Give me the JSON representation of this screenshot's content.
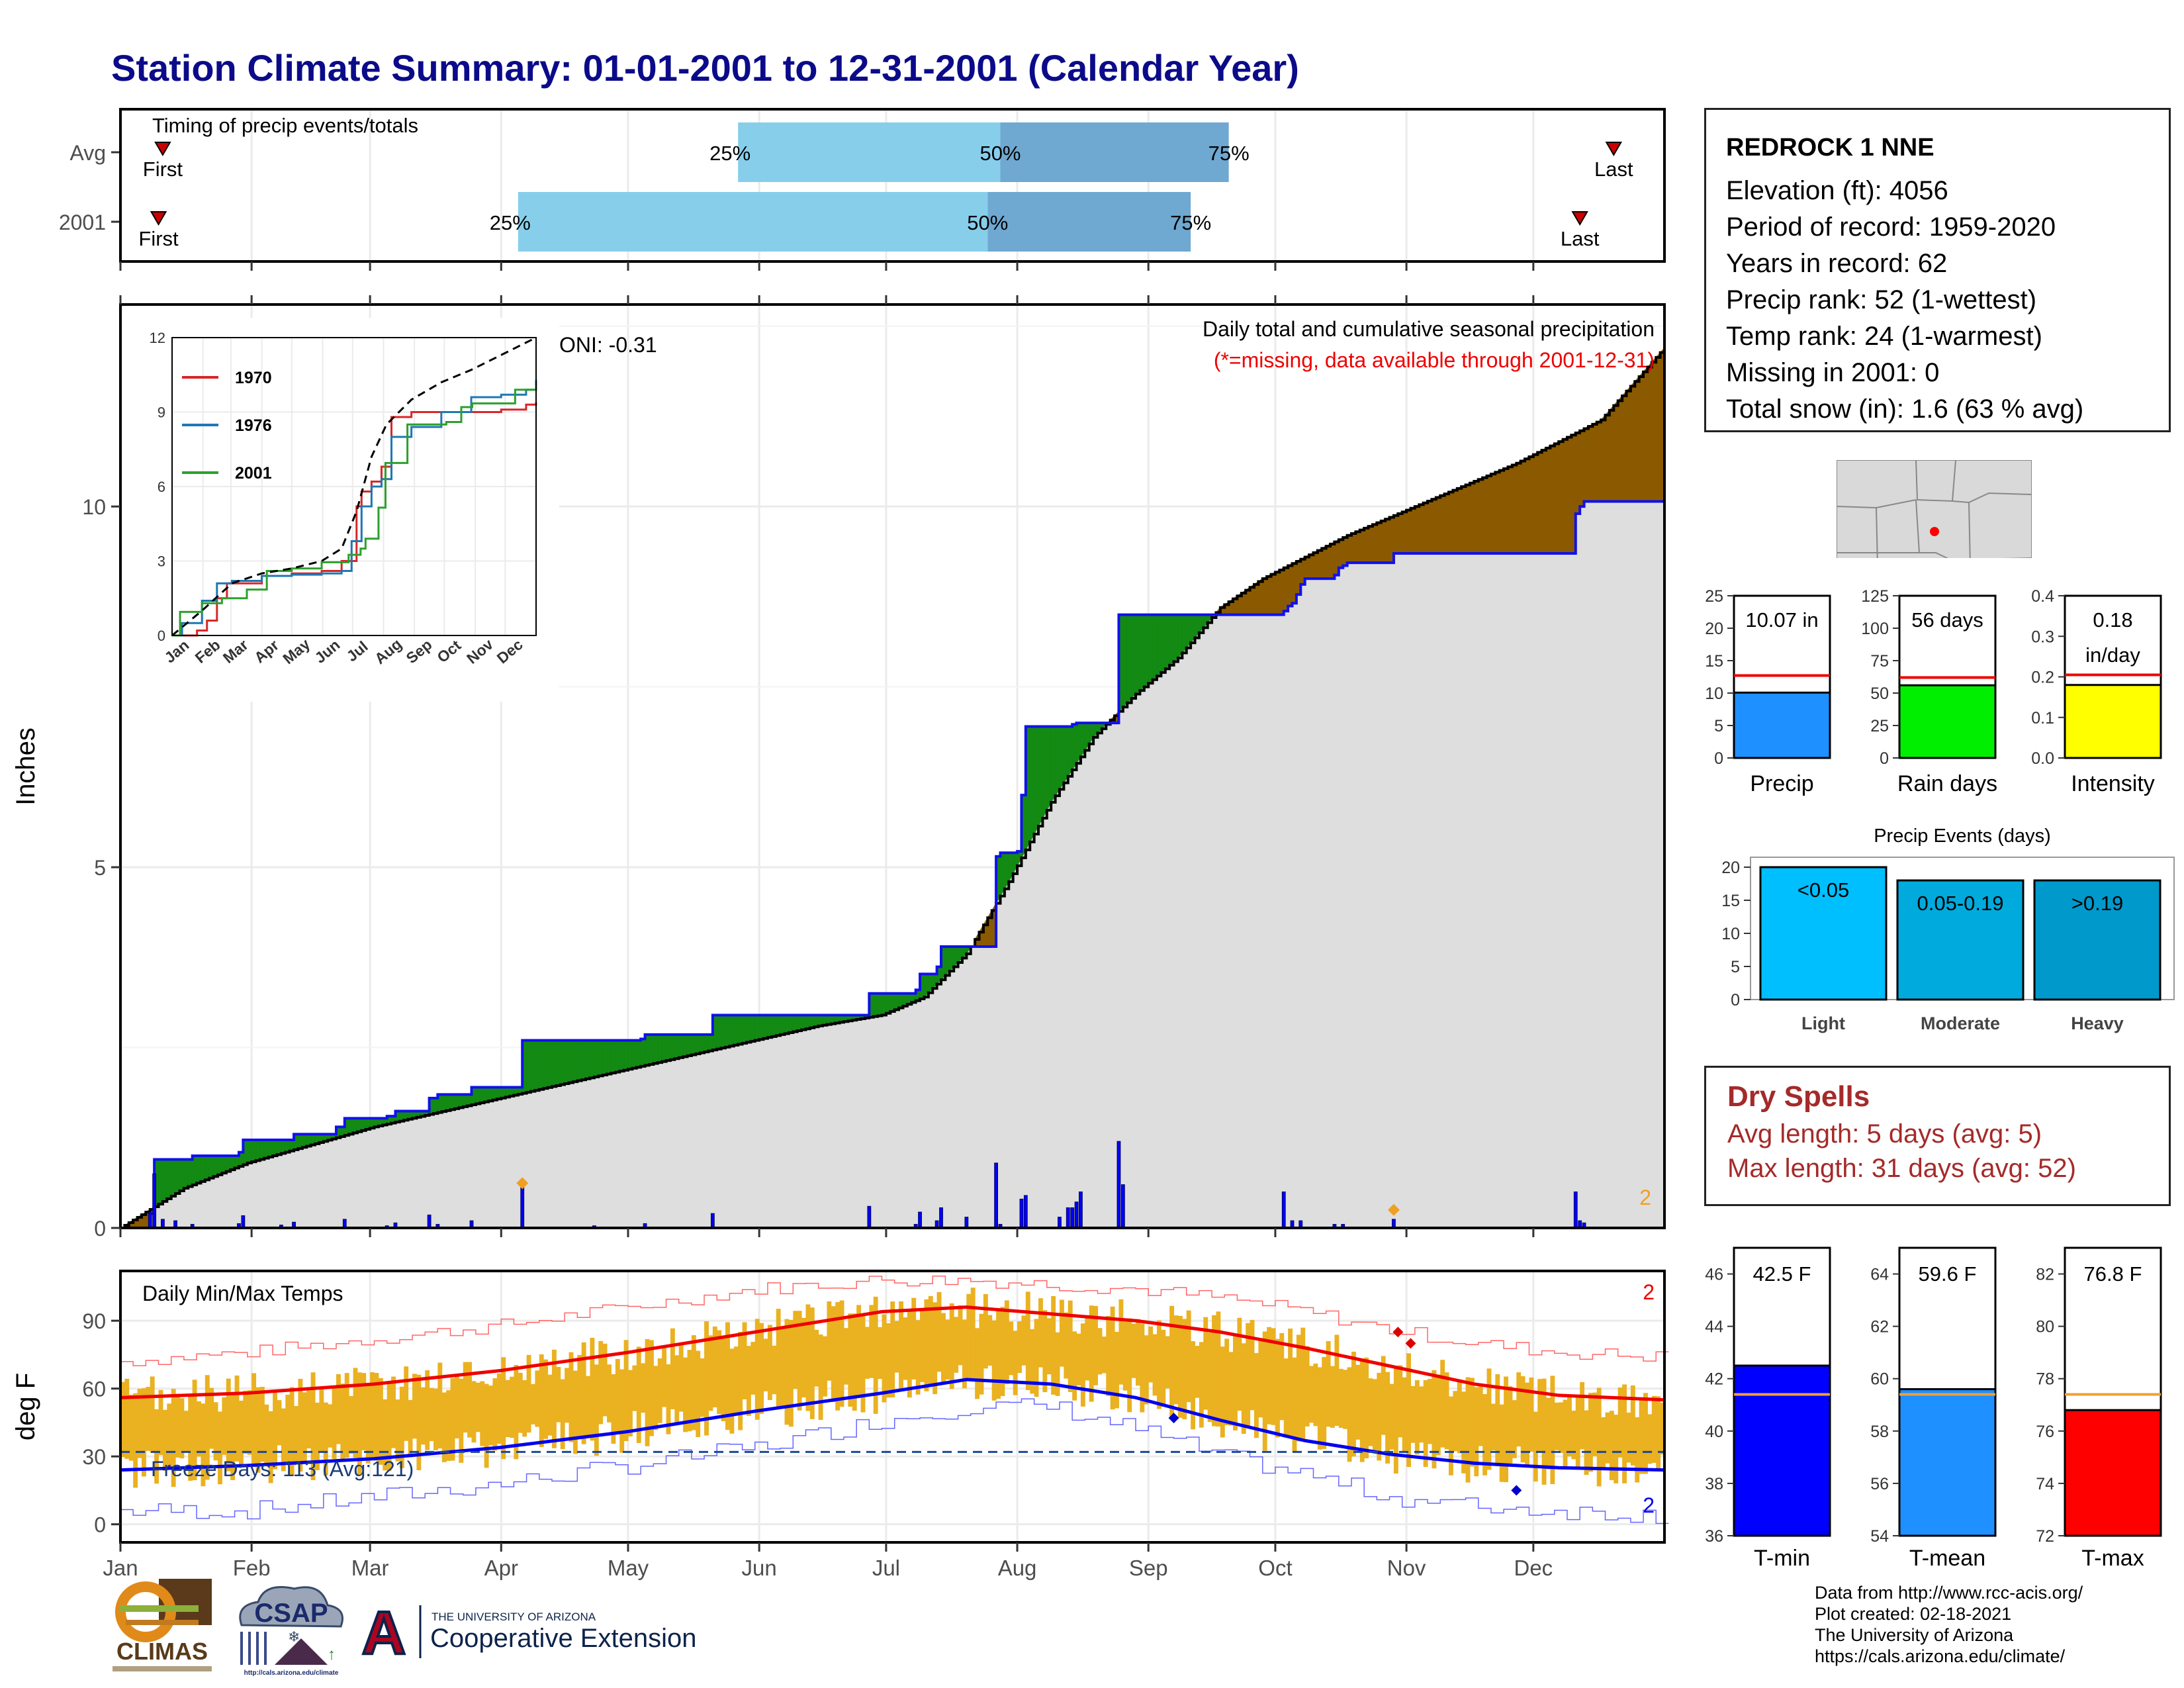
{
  "title": "Station Climate Summary: 01-01-2001 to 12-31-2001 (Calendar Year)",
  "timing": {
    "title": "Timing of precip events/totals",
    "rows": [
      {
        "label": "Avg",
        "first_doy": 10,
        "p25_doy": 146,
        "p50_doy": 208,
        "p75_doy": 262,
        "last_doy": 353
      },
      {
        "label": "2001",
        "first_doy": 9,
        "p25_doy": 94,
        "p50_doy": 205,
        "p75_doy": 253,
        "last_doy": 345
      }
    ],
    "first_label": "First",
    "last_label": "Last",
    "p25_label": "25%",
    "p50_label": "50%",
    "p75_label": "75%"
  },
  "months": [
    "Jan",
    "Feb",
    "Mar",
    "Apr",
    "May",
    "Jun",
    "Jul",
    "Aug",
    "Sep",
    "Oct",
    "Nov",
    "Dec"
  ],
  "precip_main": {
    "ylabel": "Inches",
    "yticks": [
      0,
      5,
      10
    ],
    "header1": "Daily total and cumulative seasonal precipitation",
    "header2": "(*=missing, data available through 2001-12-31)",
    "oni": "ONI: -0.31",
    "count_label": "2",
    "avg_cum": [
      [
        0,
        0
      ],
      [
        15,
        0.55
      ],
      [
        30,
        0.9
      ],
      [
        45,
        1.15
      ],
      [
        60,
        1.4
      ],
      [
        75,
        1.6
      ],
      [
        90,
        1.8
      ],
      [
        105,
        2.0
      ],
      [
        120,
        2.2
      ],
      [
        135,
        2.4
      ],
      [
        150,
        2.6
      ],
      [
        165,
        2.8
      ],
      [
        180,
        2.95
      ],
      [
        190,
        3.2
      ],
      [
        200,
        3.8
      ],
      [
        210,
        4.8
      ],
      [
        220,
        5.9
      ],
      [
        230,
        6.8
      ],
      [
        240,
        7.4
      ],
      [
        250,
        7.9
      ],
      [
        260,
        8.6
      ],
      [
        270,
        9.0
      ],
      [
        280,
        9.3
      ],
      [
        290,
        9.6
      ],
      [
        300,
        9.85
      ],
      [
        310,
        10.1
      ],
      [
        320,
        10.35
      ],
      [
        330,
        10.6
      ],
      [
        340,
        10.9
      ],
      [
        350,
        11.2
      ],
      [
        365,
        12.2
      ]
    ],
    "obs_cum": [
      [
        0,
        0
      ],
      [
        7,
        0.2
      ],
      [
        8,
        0.95
      ],
      [
        17,
        1.0
      ],
      [
        28,
        1.05
      ],
      [
        29,
        1.22
      ],
      [
        40,
        1.22
      ],
      [
        41,
        1.3
      ],
      [
        50,
        1.3
      ],
      [
        51,
        1.4
      ],
      [
        53,
        1.52
      ],
      [
        63,
        1.55
      ],
      [
        65,
        1.62
      ],
      [
        66,
        1.62
      ],
      [
        73,
        1.8
      ],
      [
        75,
        1.85
      ],
      [
        82,
        1.85
      ],
      [
        83,
        1.95
      ],
      [
        94,
        1.95
      ],
      [
        95,
        2.6
      ],
      [
        123,
        2.62
      ],
      [
        124,
        2.68
      ],
      [
        139,
        2.68
      ],
      [
        140,
        2.95
      ],
      [
        176,
        2.95
      ],
      [
        177,
        3.25
      ],
      [
        188,
        3.3
      ],
      [
        189,
        3.52
      ],
      [
        193,
        3.62
      ],
      [
        194,
        3.9
      ],
      [
        206,
        3.9
      ],
      [
        207,
        5.15
      ],
      [
        208,
        5.2
      ],
      [
        212,
        5.22
      ],
      [
        213,
        6.0
      ],
      [
        214,
        6.95
      ],
      [
        225,
        6.98
      ],
      [
        226,
        7.0
      ],
      [
        235,
        7.0
      ],
      [
        236,
        8.5
      ],
      [
        274,
        8.5
      ],
      [
        275,
        8.55
      ],
      [
        276,
        8.62
      ],
      [
        277,
        8.66
      ],
      [
        278,
        8.78
      ],
      [
        279,
        8.92
      ],
      [
        280,
        9.0
      ],
      [
        286,
        9.0
      ],
      [
        287,
        9.05
      ],
      [
        288,
        9.15
      ],
      [
        289,
        9.18
      ],
      [
        290,
        9.22
      ],
      [
        300,
        9.22
      ],
      [
        301,
        9.35
      ],
      [
        343,
        9.35
      ],
      [
        344,
        9.9
      ],
      [
        345,
        10.0
      ],
      [
        346,
        10.07
      ],
      [
        365,
        10.07
      ]
    ],
    "daily_bars": [
      [
        7,
        0.2
      ],
      [
        8,
        0.75
      ],
      [
        10,
        0.12
      ],
      [
        13,
        0.1
      ],
      [
        17,
        0.05
      ],
      [
        28,
        0.06
      ],
      [
        29,
        0.17
      ],
      [
        38,
        0.04
      ],
      [
        41,
        0.08
      ],
      [
        53,
        0.12
      ],
      [
        63,
        0.03
      ],
      [
        65,
        0.07
      ],
      [
        73,
        0.18
      ],
      [
        75,
        0.05
      ],
      [
        83,
        0.1
      ],
      [
        95,
        0.6
      ],
      [
        112,
        0.03
      ],
      [
        124,
        0.06
      ],
      [
        140,
        0.2
      ],
      [
        177,
        0.3
      ],
      [
        188,
        0.05
      ],
      [
        189,
        0.22
      ],
      [
        193,
        0.1
      ],
      [
        194,
        0.28
      ],
      [
        200,
        0.15
      ],
      [
        207,
        0.9
      ],
      [
        208,
        0.05
      ],
      [
        213,
        0.4
      ],
      [
        214,
        0.45
      ],
      [
        222,
        0.15
      ],
      [
        224,
        0.28
      ],
      [
        225,
        0.28
      ],
      [
        226,
        0.36
      ],
      [
        227,
        0.5
      ],
      [
        236,
        1.2
      ],
      [
        237,
        0.6
      ],
      [
        275,
        0.5
      ],
      [
        277,
        0.1
      ],
      [
        279,
        0.1
      ],
      [
        287,
        0.05
      ],
      [
        289,
        0.05
      ],
      [
        301,
        0.12
      ],
      [
        344,
        0.5
      ],
      [
        345,
        0.1
      ],
      [
        346,
        0.07
      ]
    ],
    "markers": [
      {
        "doy": 95,
        "y": 0.62,
        "color": "#f0a020"
      },
      {
        "doy": 301,
        "y": 0.25,
        "color": "#f0a020"
      }
    ]
  },
  "inset": {
    "yticks": [
      0,
      3,
      6,
      9,
      12
    ],
    "legend": [
      "1970",
      "1976",
      "2001"
    ],
    "series_colors": [
      "#d62728",
      "#1f77b4",
      "#2ca02c"
    ],
    "avg_color": "#000000",
    "avg": [
      [
        0,
        0
      ],
      [
        30,
        1
      ],
      [
        60,
        2.1
      ],
      [
        90,
        2.5
      ],
      [
        120,
        2.7
      ],
      [
        150,
        3
      ],
      [
        170,
        3.5
      ],
      [
        185,
        5
      ],
      [
        200,
        7.2
      ],
      [
        215,
        8.5
      ],
      [
        240,
        9.5
      ],
      [
        270,
        10.2
      ],
      [
        300,
        10.7
      ],
      [
        330,
        11.3
      ],
      [
        365,
        12
      ]
    ],
    "s1970": [
      [
        0,
        0
      ],
      [
        25,
        0.2
      ],
      [
        35,
        0.6
      ],
      [
        45,
        1.5
      ],
      [
        55,
        2.1
      ],
      [
        90,
        2.4
      ],
      [
        120,
        2.5
      ],
      [
        150,
        2.6
      ],
      [
        170,
        3.0
      ],
      [
        185,
        5.2
      ],
      [
        190,
        5.8
      ],
      [
        200,
        6.2
      ],
      [
        210,
        6.8
      ],
      [
        220,
        8.8
      ],
      [
        240,
        9.0
      ],
      [
        270,
        9.0
      ],
      [
        300,
        9.0
      ],
      [
        330,
        9.1
      ],
      [
        355,
        9.3
      ],
      [
        365,
        9.4
      ]
    ],
    "s1976": [
      [
        0,
        0
      ],
      [
        10,
        0.5
      ],
      [
        30,
        1.4
      ],
      [
        45,
        2.1
      ],
      [
        60,
        2.2
      ],
      [
        90,
        2.4
      ],
      [
        120,
        2.45
      ],
      [
        150,
        2.5
      ],
      [
        170,
        2.6
      ],
      [
        180,
        3.8
      ],
      [
        190,
        5.2
      ],
      [
        200,
        6.0
      ],
      [
        210,
        6.3
      ],
      [
        220,
        8.0
      ],
      [
        240,
        8.4
      ],
      [
        270,
        9.0
      ],
      [
        300,
        9.6
      ],
      [
        330,
        9.7
      ],
      [
        355,
        9.9
      ],
      [
        365,
        10.3
      ]
    ],
    "s2001": [
      [
        0,
        0
      ],
      [
        8,
        0.95
      ],
      [
        30,
        1.3
      ],
      [
        50,
        1.5
      ],
      [
        75,
        1.85
      ],
      [
        95,
        2.6
      ],
      [
        120,
        2.7
      ],
      [
        150,
        2.95
      ],
      [
        177,
        3.25
      ],
      [
        189,
        3.5
      ],
      [
        194,
        3.9
      ],
      [
        207,
        5.15
      ],
      [
        214,
        6.95
      ],
      [
        236,
        8.5
      ],
      [
        275,
        8.6
      ],
      [
        290,
        9.2
      ],
      [
        301,
        9.35
      ],
      [
        344,
        9.9
      ],
      [
        365,
        10.07
      ]
    ]
  },
  "temps": {
    "ylabel": "deg F",
    "yticks": [
      0,
      30,
      60,
      90
    ],
    "label": "Daily Min/Max Temps",
    "freeze_label": "Freeze Days: 113 (Avg:121)",
    "freeze_line": 32,
    "count_top": "2",
    "count_bottom": "2",
    "avg_max": [
      [
        0,
        56
      ],
      [
        30,
        58
      ],
      [
        60,
        62
      ],
      [
        90,
        68
      ],
      [
        120,
        76
      ],
      [
        150,
        85
      ],
      [
        180,
        94
      ],
      [
        200,
        96
      ],
      [
        220,
        93
      ],
      [
        240,
        90
      ],
      [
        260,
        85
      ],
      [
        280,
        78
      ],
      [
        300,
        70
      ],
      [
        320,
        62
      ],
      [
        340,
        57
      ],
      [
        365,
        55
      ]
    ],
    "avg_min": [
      [
        0,
        24
      ],
      [
        30,
        26
      ],
      [
        60,
        29
      ],
      [
        90,
        34
      ],
      [
        120,
        41
      ],
      [
        150,
        50
      ],
      [
        180,
        58
      ],
      [
        200,
        64
      ],
      [
        220,
        62
      ],
      [
        240,
        56
      ],
      [
        260,
        46
      ],
      [
        280,
        37
      ],
      [
        300,
        31
      ],
      [
        320,
        27
      ],
      [
        340,
        25
      ],
      [
        365,
        24
      ]
    ],
    "rec_max": [
      [
        0,
        72
      ],
      [
        30,
        76
      ],
      [
        60,
        82
      ],
      [
        90,
        88
      ],
      [
        120,
        96
      ],
      [
        150,
        104
      ],
      [
        180,
        108
      ],
      [
        200,
        108
      ],
      [
        220,
        106
      ],
      [
        240,
        104
      ],
      [
        260,
        100
      ],
      [
        280,
        94
      ],
      [
        300,
        86
      ],
      [
        320,
        80
      ],
      [
        340,
        76
      ],
      [
        365,
        74
      ]
    ],
    "rec_min": [
      [
        0,
        6
      ],
      [
        30,
        6
      ],
      [
        60,
        12
      ],
      [
        90,
        18
      ],
      [
        120,
        26
      ],
      [
        150,
        34
      ],
      [
        180,
        46
      ],
      [
        200,
        52
      ],
      [
        220,
        52
      ],
      [
        240,
        42
      ],
      [
        260,
        30
      ],
      [
        280,
        22
      ],
      [
        300,
        12
      ],
      [
        320,
        8
      ],
      [
        340,
        6
      ],
      [
        365,
        4
      ]
    ],
    "markers": [
      {
        "doy": 249,
        "y": 47,
        "color": "#0000cc"
      },
      {
        "doy": 302,
        "y": 85,
        "color": "#dd0000"
      },
      {
        "doy": 305,
        "y": 80,
        "color": "#dd0000"
      },
      {
        "doy": 330,
        "y": 15,
        "color": "#0000cc"
      }
    ]
  },
  "station": {
    "name": "REDROCK 1 NNE",
    "lines": [
      "Elevation (ft): 4056",
      "Period of record: 1959-2020",
      "Years in record: 62",
      "Precip rank: 52 (1-wettest)",
      "Temp rank: 24 (1-warmest)",
      "Missing in 2001: 0",
      "Total snow (in): 1.6 (63 % avg)"
    ]
  },
  "mini_bars": [
    {
      "label": "Precip",
      "value_text": "10.07 in",
      "value": 10.07,
      "avg": 12.7,
      "ymax": 25,
      "yticks": [
        0,
        5,
        10,
        15,
        20,
        25
      ],
      "color": "#1e90ff"
    },
    {
      "label": "Rain days",
      "value_text": "56 days",
      "value": 56,
      "avg": 62,
      "ymax": 125,
      "yticks": [
        0,
        25,
        50,
        75,
        100,
        125
      ],
      "color": "#00ee00"
    },
    {
      "label": "Intensity",
      "value_text": "0.18",
      "value_text2": "in/day",
      "value": 0.18,
      "avg": 0.205,
      "ymax": 0.4,
      "yticks": [
        0.0,
        0.1,
        0.2,
        0.3,
        0.4
      ],
      "color": "#ffff00"
    }
  ],
  "events": {
    "title": "Precip Events (days)",
    "yticks": [
      0,
      5,
      10,
      15,
      20
    ],
    "bars": [
      {
        "label": "Light",
        "range": "<0.05",
        "value": 20,
        "color": "#00bfff"
      },
      {
        "label": "Moderate",
        "range": "0.05-0.19",
        "value": 18,
        "color": "#00aadd"
      },
      {
        "label": "Heavy",
        "range": ">0.19",
        "value": 18,
        "color": "#0099cc"
      }
    ]
  },
  "dry_spells": {
    "title": "Dry Spells",
    "avg_line": "Avg length: 5 days (avg: 5)",
    "max_line": "Max length: 31 days (avg: 52)"
  },
  "temp_bars": [
    {
      "label": "T-min",
      "value_text": "42.5 F",
      "value": 42.5,
      "avg": 41.4,
      "ymin": 36,
      "ymax": 47,
      "yticks": [
        36,
        38,
        40,
        42,
        44,
        46
      ],
      "color": "#0000ff"
    },
    {
      "label": "T-mean",
      "value_text": "59.6 F",
      "value": 59.6,
      "avg": 59.4,
      "ymin": 54,
      "ymax": 65,
      "yticks": [
        54,
        56,
        58,
        60,
        62,
        64
      ],
      "color": "#1e90ff"
    },
    {
      "label": "T-max",
      "value_text": "76.8 F",
      "value": 76.8,
      "avg": 77.4,
      "ymin": 72,
      "ymax": 83,
      "yticks": [
        72,
        74,
        76,
        78,
        80,
        82
      ],
      "color": "#ff0000"
    }
  ],
  "credits": [
    "Data from http://www.rcc-acis.org/",
    "Plot created: 02-18-2021",
    "The University of Arizona",
    "https://cals.arizona.edu/climate/"
  ],
  "logos": {
    "climas": "CLIMAS",
    "csap": "CSAP",
    "csap_url": "http://cals.arizona.edu/climate",
    "ua_small": "THE UNIVERSITY OF ARIZONA",
    "ua_big": "Cooperative Extension",
    "ua_letter": "A"
  },
  "chart_data": [
    {
      "type": "bar",
      "title": "Timing of precip events/totals",
      "categories": [
        "Avg",
        "2001"
      ],
      "series": [
        {
          "name": "25%",
          "values": [
            146,
            94
          ]
        },
        {
          "name": "50%",
          "values": [
            208,
            205
          ]
        },
        {
          "name": "75%",
          "values": [
            262,
            253
          ]
        }
      ]
    },
    {
      "type": "area",
      "title": "Daily total and cumulative seasonal precipitation",
      "ylabel": "Inches",
      "ylim": [
        0,
        12.8
      ],
      "total_2001": 10.07
    },
    {
      "type": "line",
      "title": "Daily Min/Max Temps",
      "ylabel": "deg F",
      "ylim": [
        -8,
        112
      ]
    },
    {
      "type": "bar",
      "categories": [
        "Precip",
        "Rain days",
        "Intensity"
      ],
      "values": [
        10.07,
        56,
        0.18
      ]
    },
    {
      "type": "bar",
      "title": "Precip Events (days)",
      "categories": [
        "Light",
        "Moderate",
        "Heavy"
      ],
      "values": [
        20,
        18,
        18
      ]
    },
    {
      "type": "bar",
      "categories": [
        "T-min",
        "T-mean",
        "T-max"
      ],
      "values": [
        42.5,
        59.6,
        76.8
      ]
    }
  ]
}
